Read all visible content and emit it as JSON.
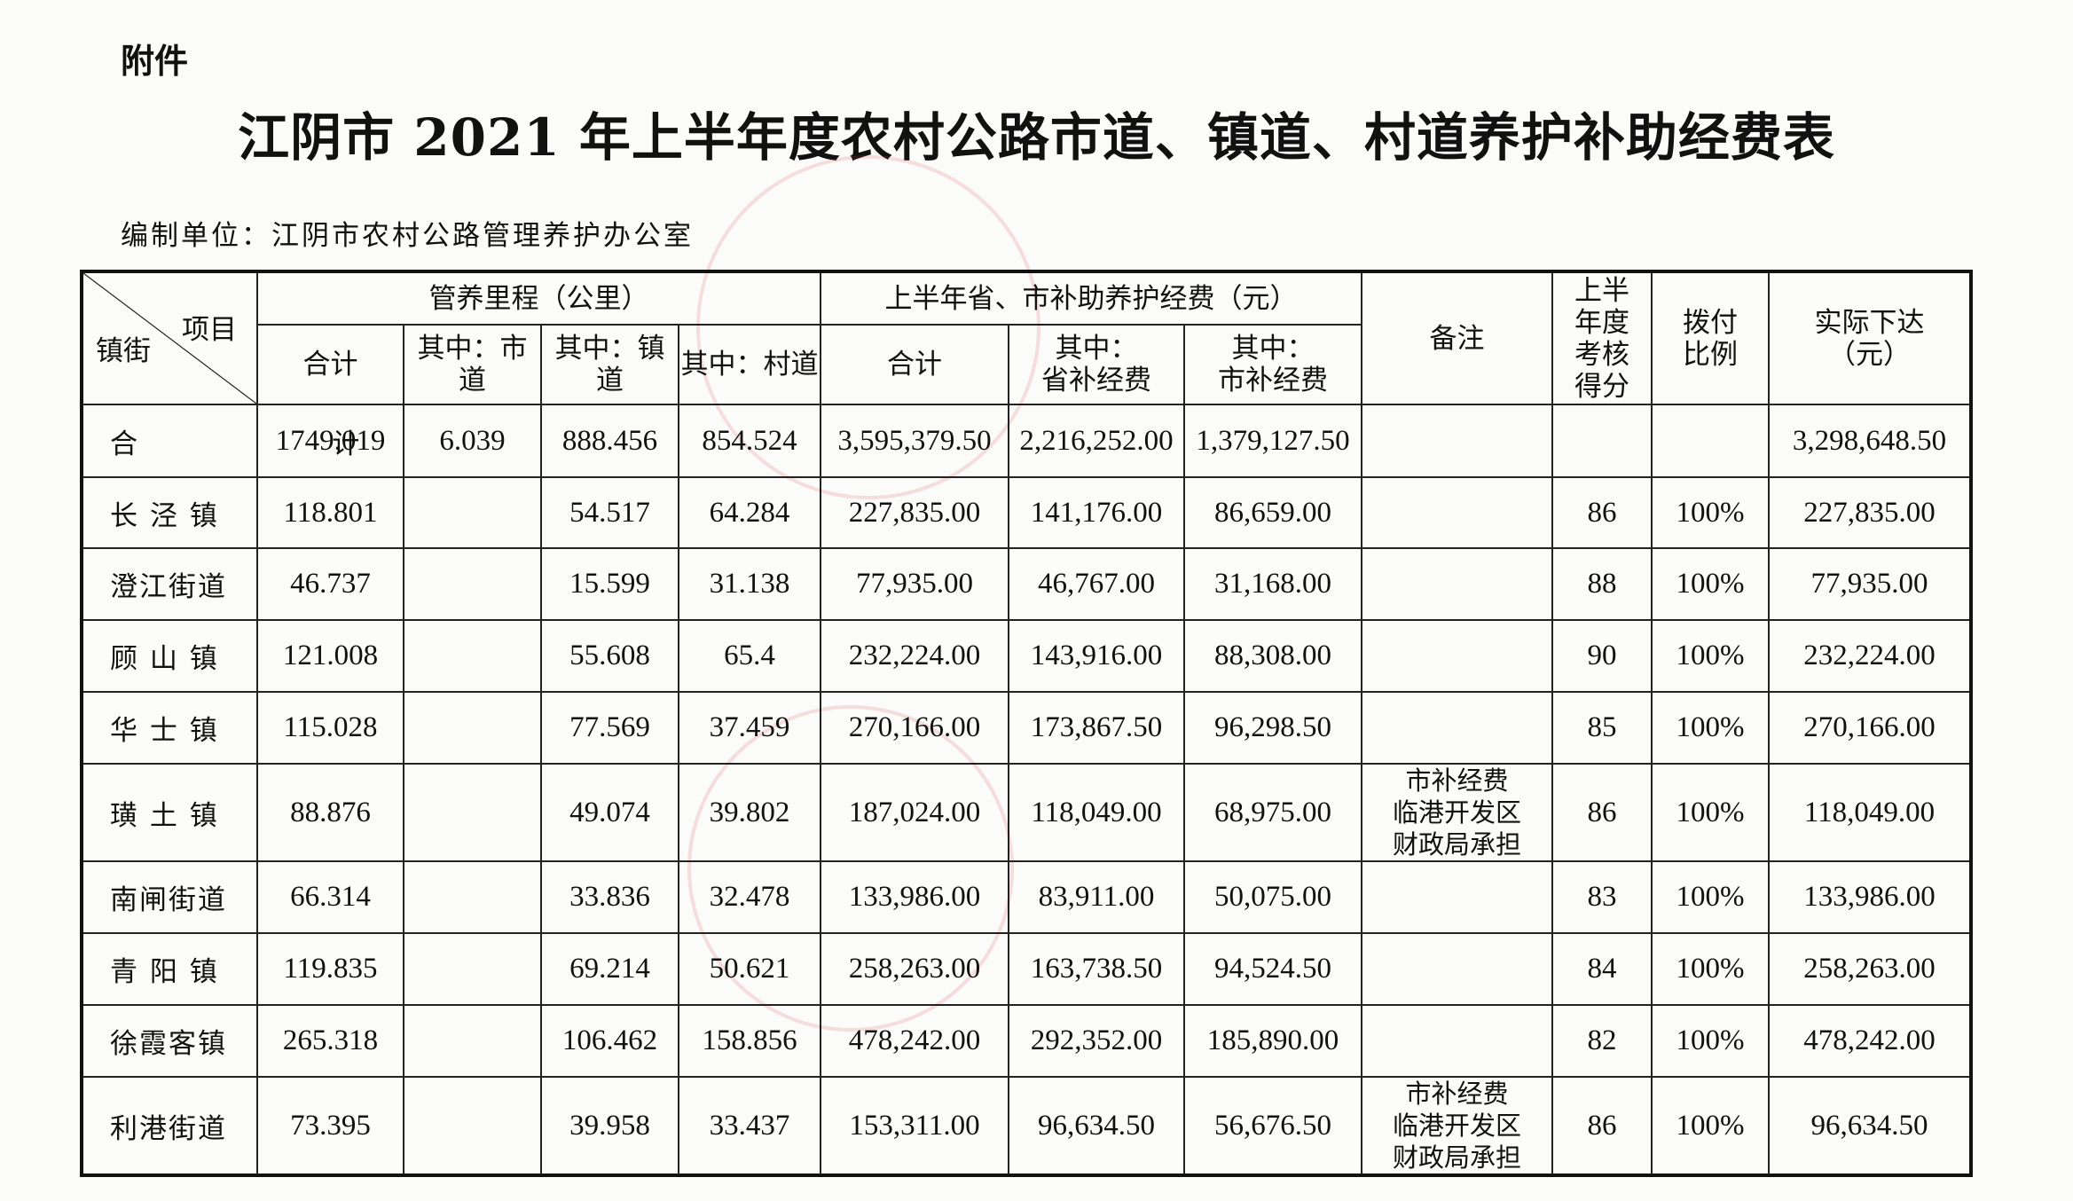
{
  "header": {
    "attachment": "附件",
    "title": "江阴市 2021 年上半年度农村公路市道、镇道、村道养护补助经费表",
    "org": "编制单位：江阴市农村公路管理养护办公室"
  },
  "columns": {
    "corner_project": "项目",
    "corner_town": "镇街",
    "mileage_group": "管养里程（公里）",
    "total": "合计",
    "city_road": "其中：市道",
    "town_road": "其中：镇道",
    "village_road": "其中：村道",
    "funding_group": "上半年省、市补助养护经费（元）",
    "fund_total": "合计",
    "prov_fund": "其中：\n省补经费",
    "city_fund": "其中：\n市补经费",
    "remark": "备注",
    "score": "上半\n年度\n考核\n得分",
    "ratio": "拨付\n比例",
    "actual": "实际下达\n（元）"
  },
  "rows": [
    {
      "town": "合    计",
      "total": "1749.019",
      "city": "6.039",
      "towndao": "888.456",
      "village": "854.524",
      "ftotal": "3,595,379.50",
      "prov": "2,216,252.00",
      "cityf": "1,379,127.50",
      "remark": "",
      "score": "",
      "ratio": "",
      "actual": "3,298,648.50"
    },
    {
      "town": "长 泾 镇",
      "total": "118.801",
      "city": "",
      "towndao": "54.517",
      "village": "64.284",
      "ftotal": "227,835.00",
      "prov": "141,176.00",
      "cityf": "86,659.00",
      "remark": "",
      "score": "86",
      "ratio": "100%",
      "actual": "227,835.00"
    },
    {
      "town": "澄江街道",
      "total": "46.737",
      "city": "",
      "towndao": "15.599",
      "village": "31.138",
      "ftotal": "77,935.00",
      "prov": "46,767.00",
      "cityf": "31,168.00",
      "remark": "",
      "score": "88",
      "ratio": "100%",
      "actual": "77,935.00"
    },
    {
      "town": "顾 山 镇",
      "total": "121.008",
      "city": "",
      "towndao": "55.608",
      "village": "65.4",
      "ftotal": "232,224.00",
      "prov": "143,916.00",
      "cityf": "88,308.00",
      "remark": "",
      "score": "90",
      "ratio": "100%",
      "actual": "232,224.00"
    },
    {
      "town": "华 士 镇",
      "total": "115.028",
      "city": "",
      "towndao": "77.569",
      "village": "37.459",
      "ftotal": "270,166.00",
      "prov": "173,867.50",
      "cityf": "96,298.50",
      "remark": "",
      "score": "85",
      "ratio": "100%",
      "actual": "270,166.00"
    },
    {
      "town": "璜 土 镇",
      "total": "88.876",
      "city": "",
      "towndao": "49.074",
      "village": "39.802",
      "ftotal": "187,024.00",
      "prov": "118,049.00",
      "cityf": "68,975.00",
      "remark": "市补经费\n临港开发区\n财政局承担",
      "score": "86",
      "ratio": "100%",
      "actual": "118,049.00"
    },
    {
      "town": "南闸街道",
      "total": "66.314",
      "city": "",
      "towndao": "33.836",
      "village": "32.478",
      "ftotal": "133,986.00",
      "prov": "83,911.00",
      "cityf": "50,075.00",
      "remark": "",
      "score": "83",
      "ratio": "100%",
      "actual": "133,986.00"
    },
    {
      "town": "青 阳 镇",
      "total": "119.835",
      "city": "",
      "towndao": "69.214",
      "village": "50.621",
      "ftotal": "258,263.00",
      "prov": "163,738.50",
      "cityf": "94,524.50",
      "remark": "",
      "score": "84",
      "ratio": "100%",
      "actual": "258,263.00"
    },
    {
      "town": "徐霞客镇",
      "total": "265.318",
      "city": "",
      "towndao": "106.462",
      "village": "158.856",
      "ftotal": "478,242.00",
      "prov": "292,352.00",
      "cityf": "185,890.00",
      "remark": "",
      "score": "82",
      "ratio": "100%",
      "actual": "478,242.00"
    },
    {
      "town": "利港街道",
      "total": "73.395",
      "city": "",
      "towndao": "39.958",
      "village": "33.437",
      "ftotal": "153,311.00",
      "prov": "96,634.50",
      "cityf": "56,676.50",
      "remark": "市补经费\n临港开发区\n财政局承担",
      "score": "86",
      "ratio": "100%",
      "actual": "96,634.50"
    }
  ]
}
